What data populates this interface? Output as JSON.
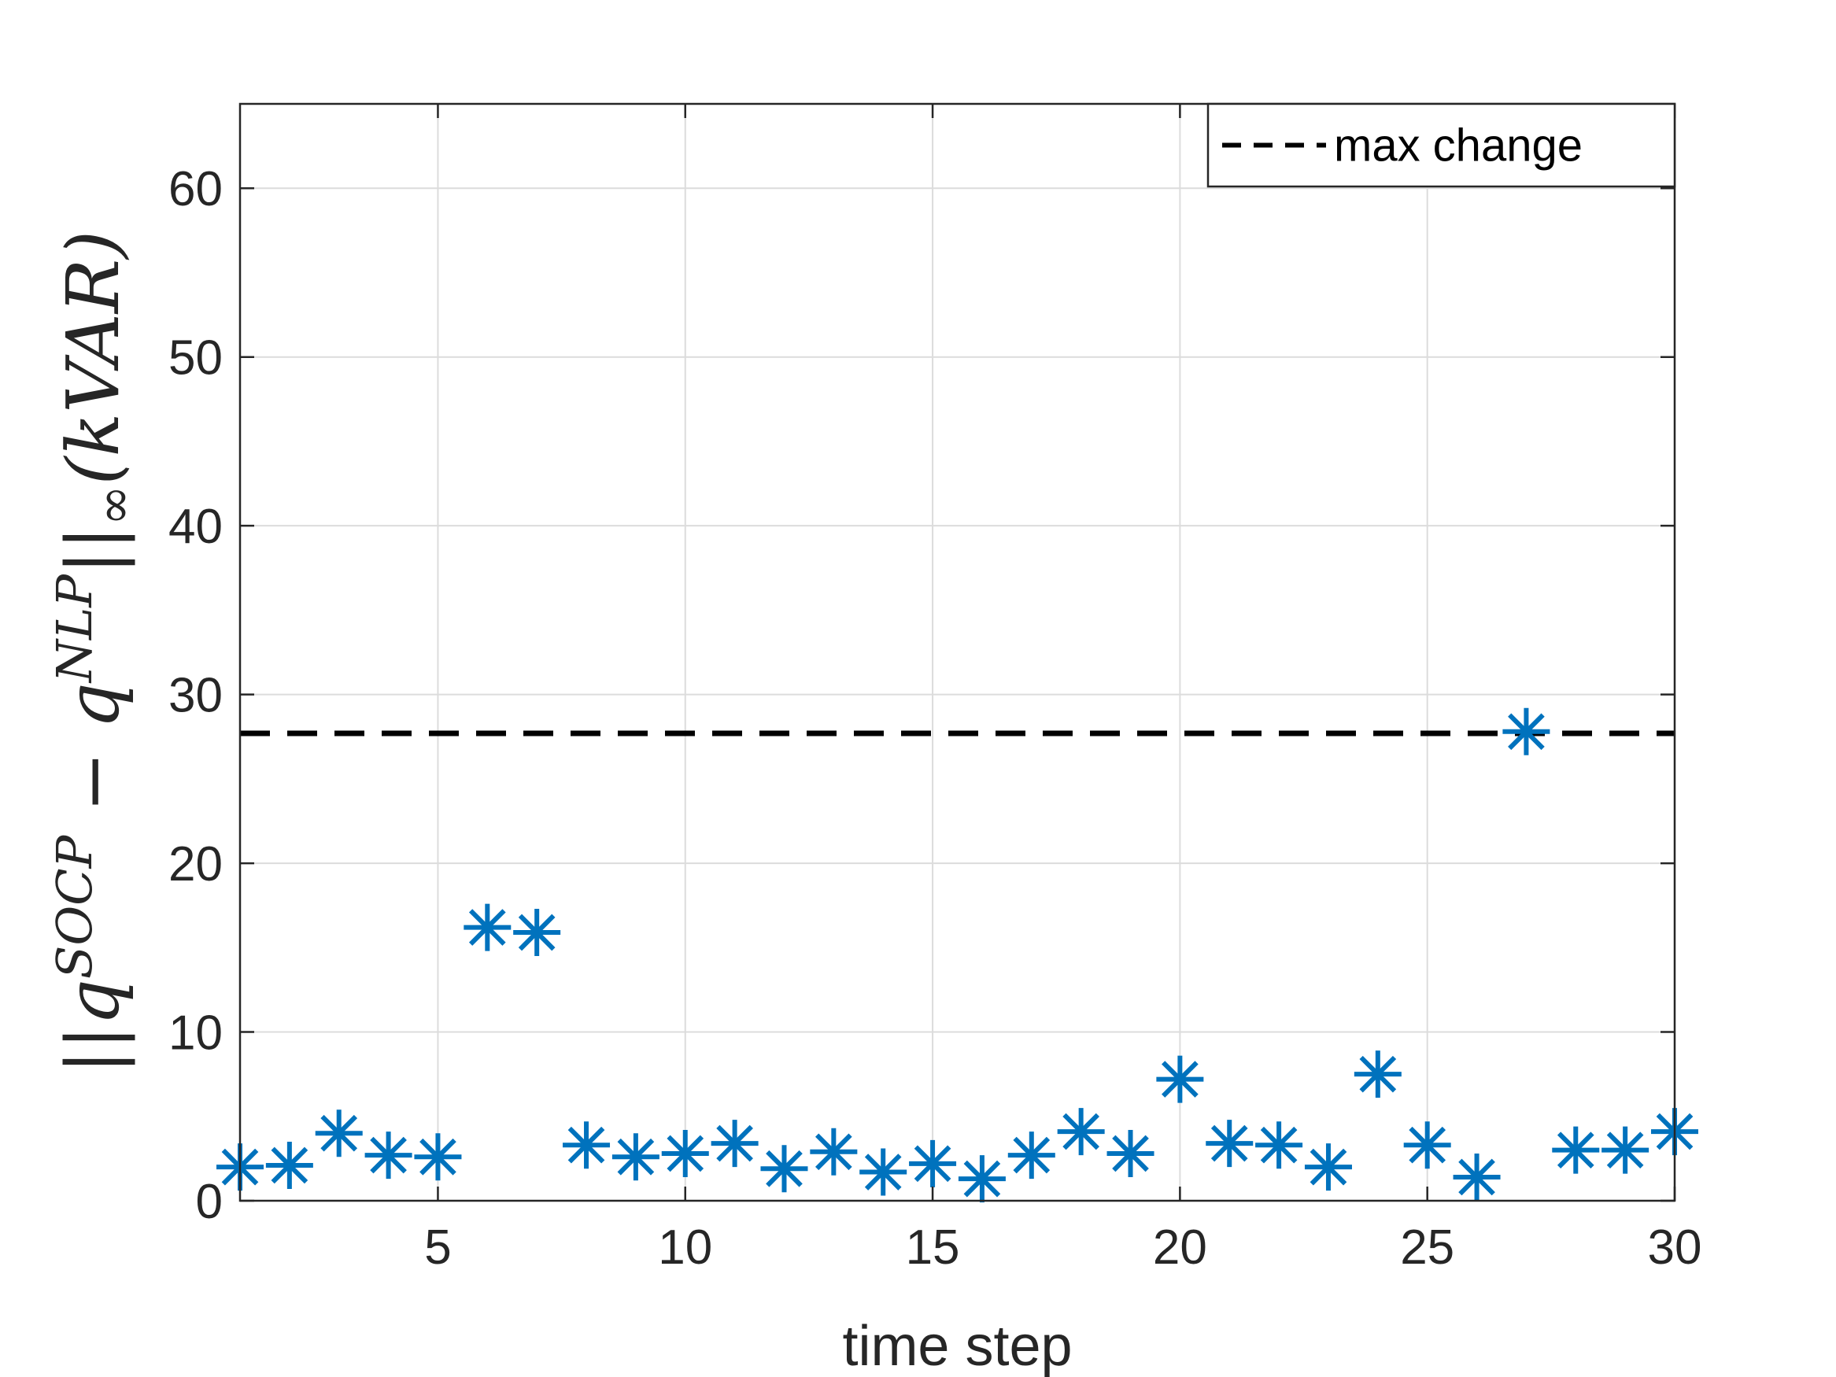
{
  "chart_data": {
    "type": "scatter",
    "title": "",
    "xlabel": "time step",
    "ylabel_parts": {
      "open": "||q",
      "sup1": "SOCP",
      "minus": " − q",
      "sup2": "NLP",
      "close": "||",
      "sub": "∞",
      "unit": "(kVAR)"
    },
    "xlim": [
      1,
      30
    ],
    "ylim": [
      0,
      65
    ],
    "xticks": [
      5,
      10,
      15,
      20,
      25,
      30
    ],
    "yticks": [
      0,
      10,
      20,
      30,
      40,
      50,
      60
    ],
    "grid": true,
    "legend_position": "top-right",
    "marker_color": "#0072BD",
    "line_color": "#000000",
    "series": [
      {
        "marker": "asterisk",
        "x": [
          1,
          2,
          3,
          4,
          5,
          6,
          7,
          8,
          9,
          10,
          11,
          12,
          13,
          14,
          15,
          16,
          17,
          18,
          19,
          20,
          21,
          22,
          23,
          24,
          25,
          26,
          27,
          28,
          29,
          30
        ],
        "y": [
          2.0,
          2.1,
          4.0,
          2.7,
          2.6,
          16.2,
          15.9,
          3.3,
          2.6,
          2.8,
          3.4,
          1.9,
          2.9,
          1.7,
          2.2,
          1.3,
          2.7,
          4.1,
          2.8,
          7.2,
          3.4,
          3.3,
          2.0,
          7.5,
          3.3,
          1.4,
          27.8,
          3.0,
          3.0,
          4.1
        ]
      },
      {
        "name": "max change",
        "style": "dashed-line",
        "y": 27.7
      }
    ]
  }
}
